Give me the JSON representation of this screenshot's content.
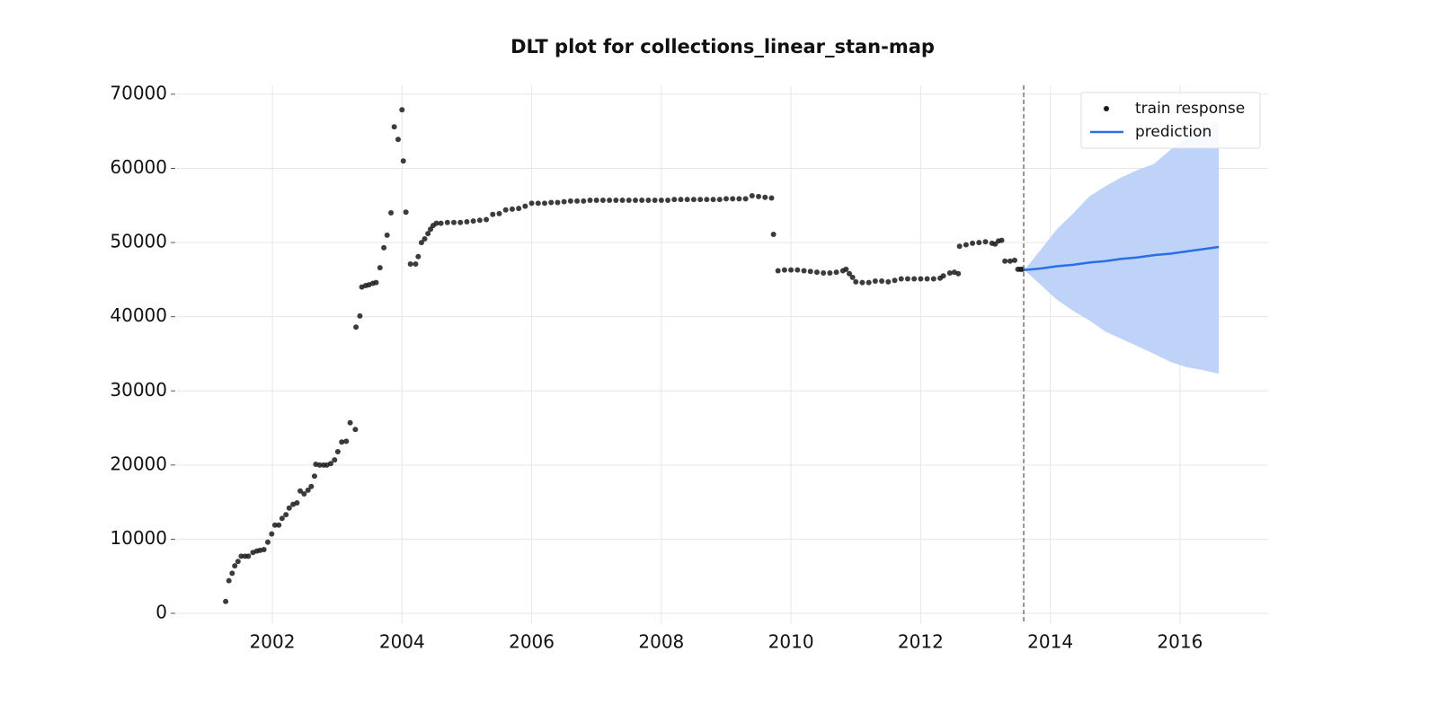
{
  "chart_data": {
    "type": "scatter",
    "title": "DLT plot for collections_linear_stan-map",
    "xlim": [
      2000.53,
      2017.36
    ],
    "ylim": [
      -1450,
      71200
    ],
    "xticks": [
      2002,
      2004,
      2006,
      2008,
      2010,
      2012,
      2014,
      2016
    ],
    "yticks": [
      0,
      10000,
      20000,
      30000,
      40000,
      50000,
      60000,
      70000
    ],
    "grid": true,
    "legend": "upper right",
    "vline": 2013.59,
    "series": [
      {
        "name": "train response",
        "type": "scatter",
        "color": "#1a1a1a",
        "x": [
          2001.28,
          2001.33,
          2001.38,
          2001.42,
          2001.47,
          2001.52,
          2001.58,
          2001.63,
          2001.7,
          2001.76,
          2001.81,
          2001.87,
          2001.93,
          2001.99,
          2002.04,
          2002.1,
          2002.15,
          2002.21,
          2002.26,
          2002.32,
          2002.38,
          2002.43,
          2002.49,
          2002.55,
          2002.6,
          2002.65,
          2002.67,
          2002.73,
          2002.79,
          2002.84,
          2002.9,
          2002.96,
          2003.01,
          2003.07,
          2003.14,
          2003.2,
          2003.28,
          2003.29,
          2003.35,
          2003.38,
          2003.44,
          2003.49,
          2003.55,
          2003.6,
          2003.66,
          2003.72,
          2003.77,
          2003.83,
          2003.88,
          2003.94,
          2004.0,
          2004.02,
          2004.06,
          2004.13,
          2004.21,
          2004.25,
          2004.3,
          2004.35,
          2004.4,
          2004.44,
          2004.48,
          2004.53,
          2004.6,
          2004.7,
          2004.8,
          2004.9,
          2005.0,
          2005.1,
          2005.2,
          2005.3,
          2005.4,
          2005.5,
          2005.6,
          2005.7,
          2005.8,
          2005.9,
          2006.0,
          2006.1,
          2006.2,
          2006.3,
          2006.4,
          2006.5,
          2006.6,
          2006.7,
          2006.8,
          2006.9,
          2007.0,
          2007.1,
          2007.2,
          2007.3,
          2007.4,
          2007.5,
          2007.6,
          2007.7,
          2007.8,
          2007.9,
          2008.0,
          2008.1,
          2008.2,
          2008.3,
          2008.4,
          2008.5,
          2008.6,
          2008.7,
          2008.8,
          2008.9,
          2009.0,
          2009.1,
          2009.2,
          2009.3,
          2009.4,
          2009.5,
          2009.6,
          2009.7,
          2009.73,
          2009.8,
          2009.9,
          2010.0,
          2010.1,
          2010.2,
          2010.3,
          2010.4,
          2010.5,
          2010.6,
          2010.7,
          2010.8,
          2010.85,
          2010.9,
          2010.95,
          2011.0,
          2011.1,
          2011.2,
          2011.3,
          2011.4,
          2011.5,
          2011.6,
          2011.7,
          2011.8,
          2011.9,
          2012.0,
          2012.1,
          2012.2,
          2012.3,
          2012.35,
          2012.45,
          2012.52,
          2012.58,
          2012.6,
          2012.7,
          2012.8,
          2012.9,
          2013.0,
          2013.1,
          2013.15,
          2013.2,
          2013.25,
          2013.3,
          2013.38,
          2013.45,
          2013.5,
          2013.54,
          2013.57
        ],
        "values": [
          1600,
          4400,
          5400,
          6400,
          7000,
          7700,
          7700,
          7700,
          8200,
          8400,
          8500,
          8600,
          9600,
          10700,
          11900,
          11900,
          12800,
          13300,
          14200,
          14700,
          14900,
          16500,
          16100,
          16600,
          17100,
          18500,
          20100,
          20000,
          20000,
          20000,
          20200,
          20700,
          21800,
          23100,
          23200,
          25700,
          24800,
          38600,
          40100,
          44000,
          44200,
          44300,
          44500,
          44600,
          46600,
          49300,
          51000,
          54000,
          65600,
          63900,
          67900,
          61000,
          54100,
          47100,
          47100,
          48100,
          50000,
          50500,
          51200,
          51800,
          52300,
          52600,
          52600,
          52700,
          52700,
          52700,
          52800,
          52900,
          53000,
          53100,
          53800,
          53900,
          54400,
          54500,
          54600,
          54900,
          55300,
          55300,
          55300,
          55400,
          55400,
          55500,
          55600,
          55600,
          55600,
          55700,
          55700,
          55700,
          55700,
          55700,
          55700,
          55700,
          55700,
          55700,
          55700,
          55700,
          55700,
          55700,
          55800,
          55800,
          55800,
          55800,
          55800,
          55800,
          55800,
          55800,
          55900,
          55900,
          55900,
          55900,
          56300,
          56200,
          56100,
          56000,
          51100,
          46200,
          46300,
          46300,
          46300,
          46200,
          46100,
          46000,
          45900,
          45900,
          46000,
          46200,
          46400,
          45800,
          45300,
          44700,
          44600,
          44600,
          44800,
          44800,
          44700,
          44900,
          45100,
          45100,
          45100,
          45100,
          45100,
          45100,
          45200,
          45500,
          45900,
          46000,
          45800,
          49500,
          49700,
          49900,
          50000,
          50100,
          49900,
          49800,
          50200,
          50300,
          47500,
          47500,
          47600,
          46400,
          46400,
          46400
        ]
      },
      {
        "name": "prediction",
        "type": "line",
        "color": "#2a6ee8",
        "band_color": "#bfd3f8",
        "x": [
          2013.6,
          2013.85,
          2014.1,
          2014.35,
          2014.6,
          2014.85,
          2015.1,
          2015.35,
          2015.6,
          2015.85,
          2016.1,
          2016.35,
          2016.6
        ],
        "values": [
          46300,
          46500,
          46800,
          47000,
          47300,
          47500,
          47800,
          48000,
          48300,
          48500,
          48800,
          49100,
          49400
        ],
        "upper": [
          46300,
          49000,
          51800,
          53900,
          56200,
          57600,
          58800,
          59800,
          60600,
          62500,
          64100,
          65000,
          66400
        ],
        "lower": [
          46300,
          44300,
          42300,
          40800,
          39500,
          38000,
          37000,
          36000,
          35000,
          33900,
          33200,
          32800,
          32300
        ]
      }
    ]
  }
}
